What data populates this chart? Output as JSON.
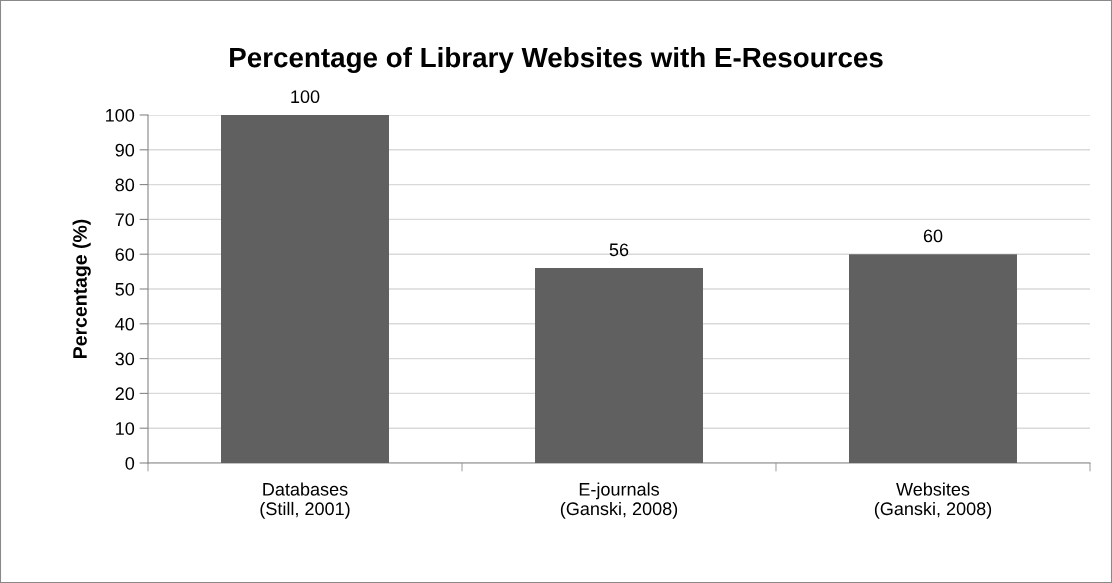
{
  "chart_data": {
    "type": "bar",
    "title": "Percentage of Library Websites with E-Resources",
    "ylabel": "Percentage (%)",
    "categories": [
      "Databases\n(Still, 2001)",
      "E-journals\n(Ganski, 2008)",
      "Websites\n(Ganski, 2008)"
    ],
    "values": [
      100,
      56,
      60
    ],
    "color": "#606060",
    "ylim": [
      0,
      100
    ],
    "yticks": [
      0,
      10,
      20,
      30,
      40,
      50,
      60,
      70,
      80,
      90,
      100
    ],
    "grid": "y",
    "data_labels": true,
    "legend": false
  }
}
